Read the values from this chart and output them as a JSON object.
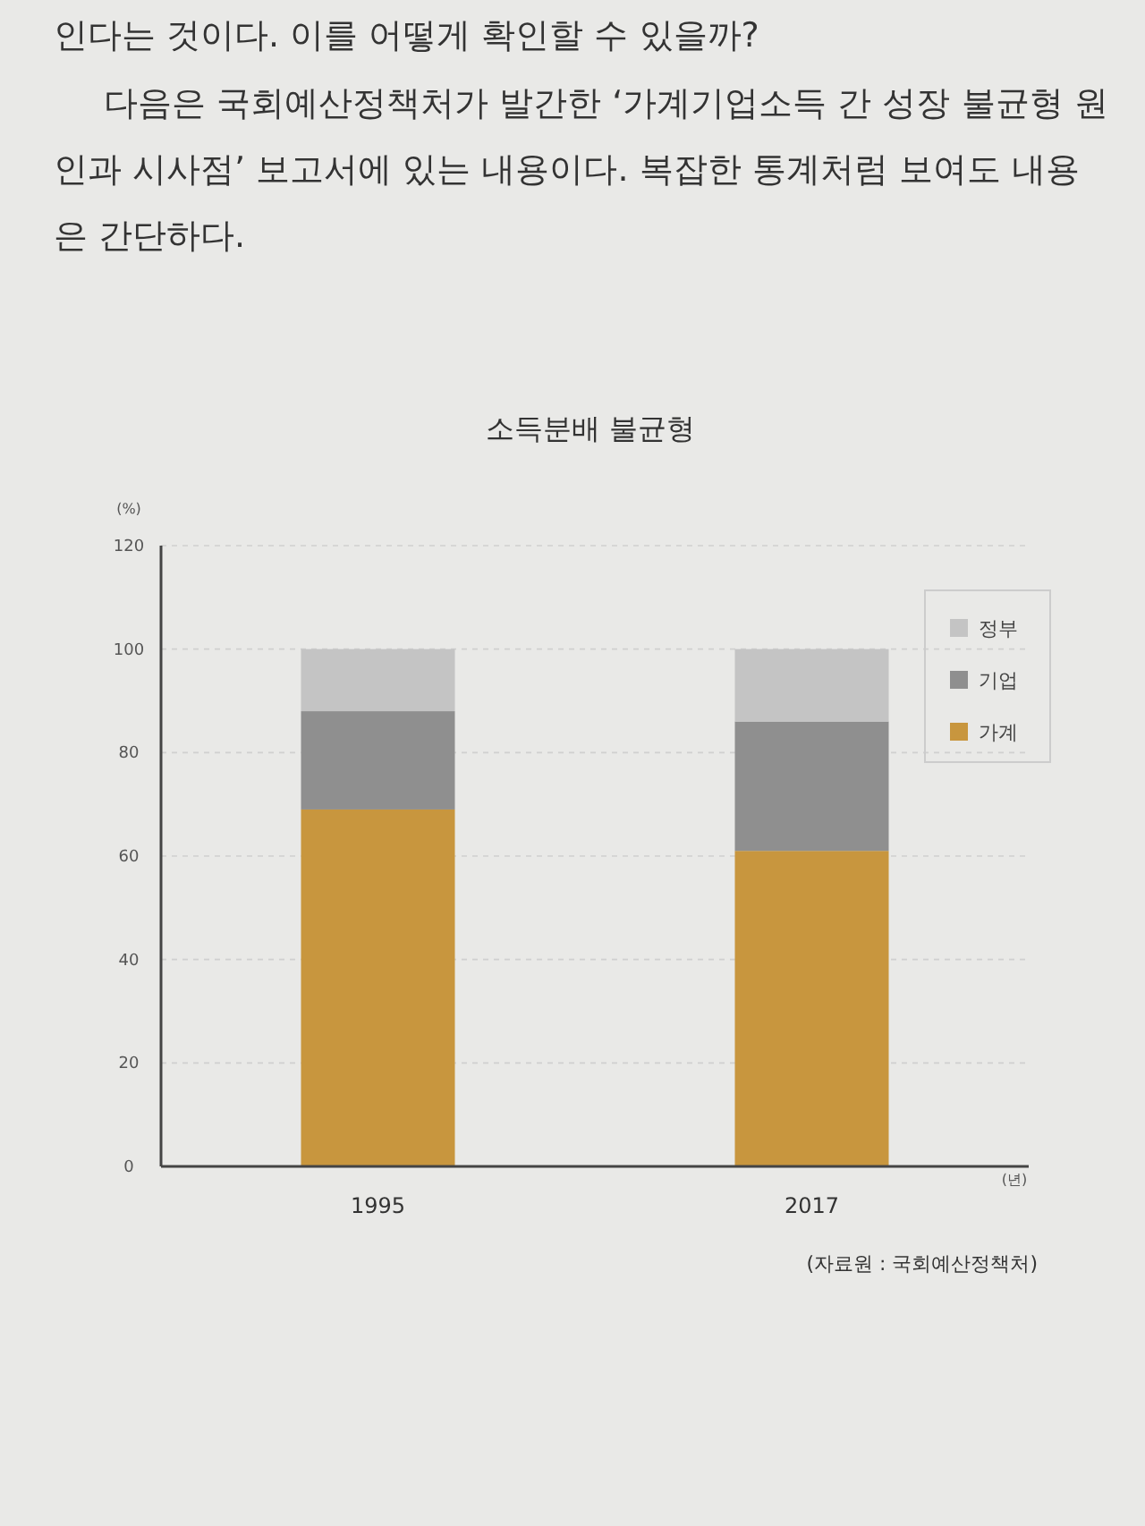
{
  "chart_data": {
    "type": "bar",
    "title": "소득분배 불균형",
    "annotations": [
      "인다는 것이다. 이를 어떻게 확인할 수 있을까?",
      "다음은 국회예산정책처가 발간한 ‘가계기업소득 간 성장 불균형 원인과 시사점’ 보고서에 있는 내용이다. 복잡한 통계처럼 보여도 내용은 간단하다.",
      "(자료원 : 국회예산정책처)"
    ],
    "ylabel": "(%)",
    "xlabel": "(년)",
    "categories": [
      "1995",
      "2017"
    ],
    "stacked": true,
    "series": [
      {
        "name": "가계",
        "color": "#c8963e",
        "values": [
          69,
          61
        ]
      },
      {
        "name": "기업",
        "color": "#8f8f8f",
        "values": [
          19,
          25
        ]
      },
      {
        "name": "정부",
        "color": "#c4c4c4",
        "values": [
          12,
          14
        ]
      }
    ],
    "ylim": [
      0,
      120
    ],
    "yticks": [
      0,
      20,
      40,
      60,
      80,
      100,
      120
    ],
    "grid": "y",
    "legend": "top right"
  }
}
